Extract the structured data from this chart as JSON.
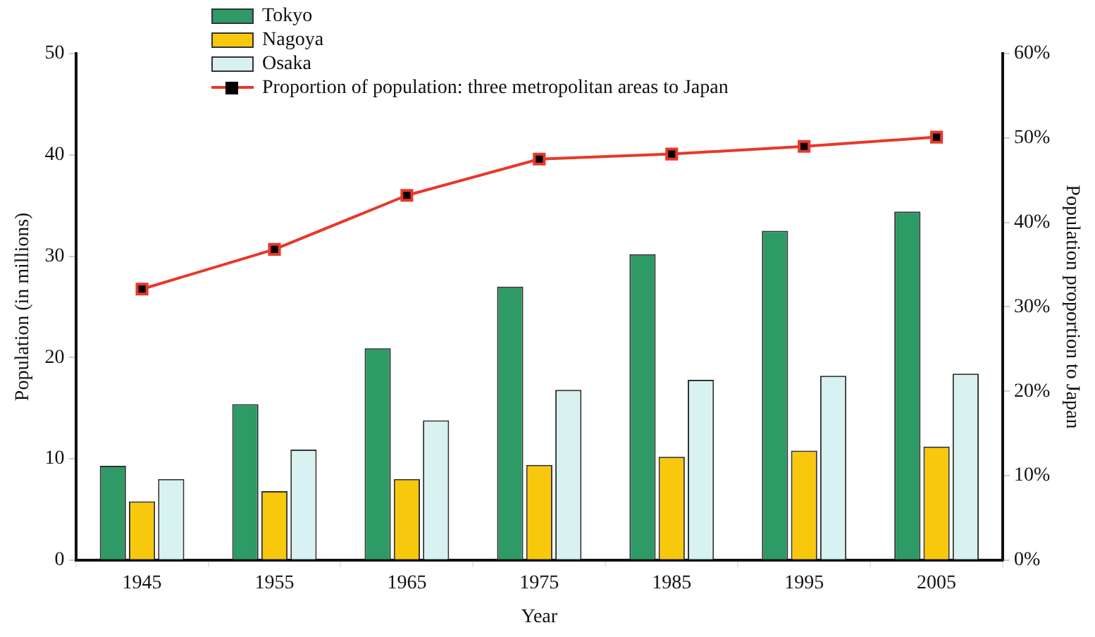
{
  "chart_data": {
    "type": "bar",
    "xlabel": "Year",
    "ylabel": "Population (in millions)",
    "y2label": "Population proportion to Japan",
    "categories": [
      "1945",
      "1955",
      "1965",
      "1975",
      "1985",
      "1995",
      "2005"
    ],
    "series": [
      {
        "name": "Tokyo",
        "color": "#2e9a66",
        "values": [
          9.3,
          15.4,
          20.9,
          27.0,
          30.2,
          32.5,
          34.4
        ]
      },
      {
        "name": "Nagoya",
        "color": "#f8c80c",
        "values": [
          5.8,
          6.8,
          8.0,
          9.4,
          10.2,
          10.8,
          11.2
        ]
      },
      {
        "name": "Osaka",
        "color": "#d8f2f2",
        "values": [
          8.0,
          10.9,
          13.8,
          16.8,
          17.8,
          18.2,
          18.4
        ]
      },
      {
        "name": "Proportion of population: three metropolitan areas to Japan",
        "type": "line",
        "axis": "y2",
        "color": "#e8382a",
        "marker": "square",
        "values": [
          32.1,
          36.8,
          43.2,
          47.5,
          48.1,
          49.0,
          50.1
        ]
      }
    ],
    "ylim": [
      0,
      50
    ],
    "yticks": [
      0,
      10,
      20,
      30,
      40,
      50
    ],
    "y2lim": [
      0,
      60
    ],
    "y2ticks": [
      {
        "value": 0,
        "label": "0%"
      },
      {
        "value": 10,
        "label": "10%"
      },
      {
        "value": 20,
        "label": "20%"
      },
      {
        "value": 30,
        "label": "30%"
      },
      {
        "value": 40,
        "label": "40%"
      },
      {
        "value": 50,
        "label": "50%"
      },
      {
        "value": 60,
        "label": "60%"
      }
    ],
    "grid": false,
    "legend": "top"
  }
}
